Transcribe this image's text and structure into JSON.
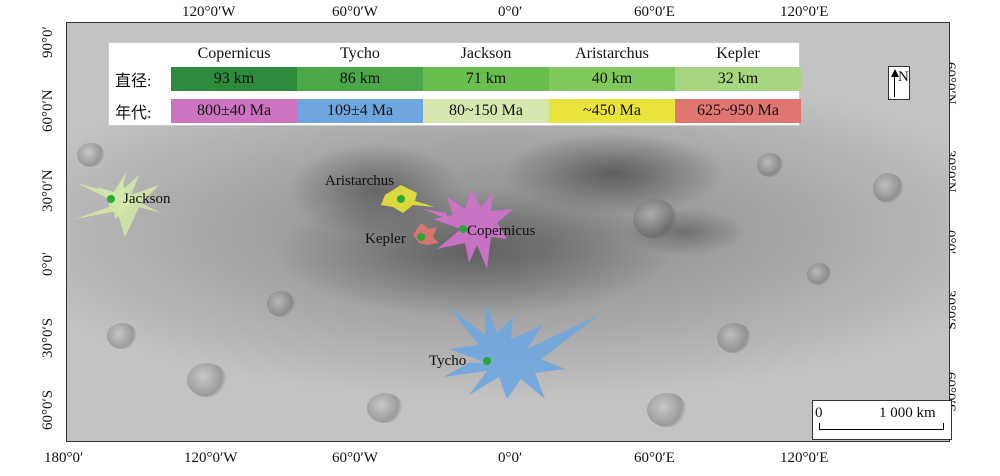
{
  "map": {
    "lon_labels_top": [
      "120°0′W",
      "60°0′W",
      "0°0′",
      "60°0′E",
      "120°0′E"
    ],
    "lon_labels_bottom": [
      "180°0′",
      "120°0′W",
      "60°0′W",
      "0°0′",
      "60°0′E",
      "120°0′E"
    ],
    "lat_labels_left": [
      "90°0′",
      "60°0′N",
      "30°0′N",
      "0°0′",
      "30°0′S",
      "60°0′S"
    ],
    "lat_labels_right": [
      "60°0′N",
      "30°0′N",
      "0°0′",
      "30°0′S",
      "60°0′S"
    ],
    "north_label": "N",
    "scale": {
      "start": "0",
      "end": "1 000 km"
    }
  },
  "legend": {
    "row_diameter_label": "直径:",
    "row_age_label": "年代:",
    "craters": [
      {
        "name": "Copernicus",
        "diameter": "93 km",
        "age": "800±40 Ma",
        "diameter_color": "#2e8b3c",
        "age_color": "#cc73c2"
      },
      {
        "name": "Tycho",
        "diameter": "86 km",
        "age": "109±4 Ma",
        "diameter_color": "#4aa848",
        "age_color": "#6fa6e0"
      },
      {
        "name": "Jackson",
        "diameter": "71 km",
        "age": "80~150 Ma",
        "diameter_color": "#69be4e",
        "age_color": "#d6e8b0"
      },
      {
        "name": "Aristarchus",
        "diameter": "40 km",
        "age": "~450 Ma",
        "diameter_color": "#80c75c",
        "age_color": "#e9e43a"
      },
      {
        "name": "Kepler",
        "diameter": "32 km",
        "age": "625~950 Ma",
        "diameter_color": "#a8d57f",
        "age_color": "#e07670"
      }
    ]
  },
  "crater_labels": {
    "jackson": "Jackson",
    "aristarchus": "Aristarchus",
    "copernicus": "Copernicus",
    "kepler": "Kepler",
    "tycho": "Tycho"
  }
}
